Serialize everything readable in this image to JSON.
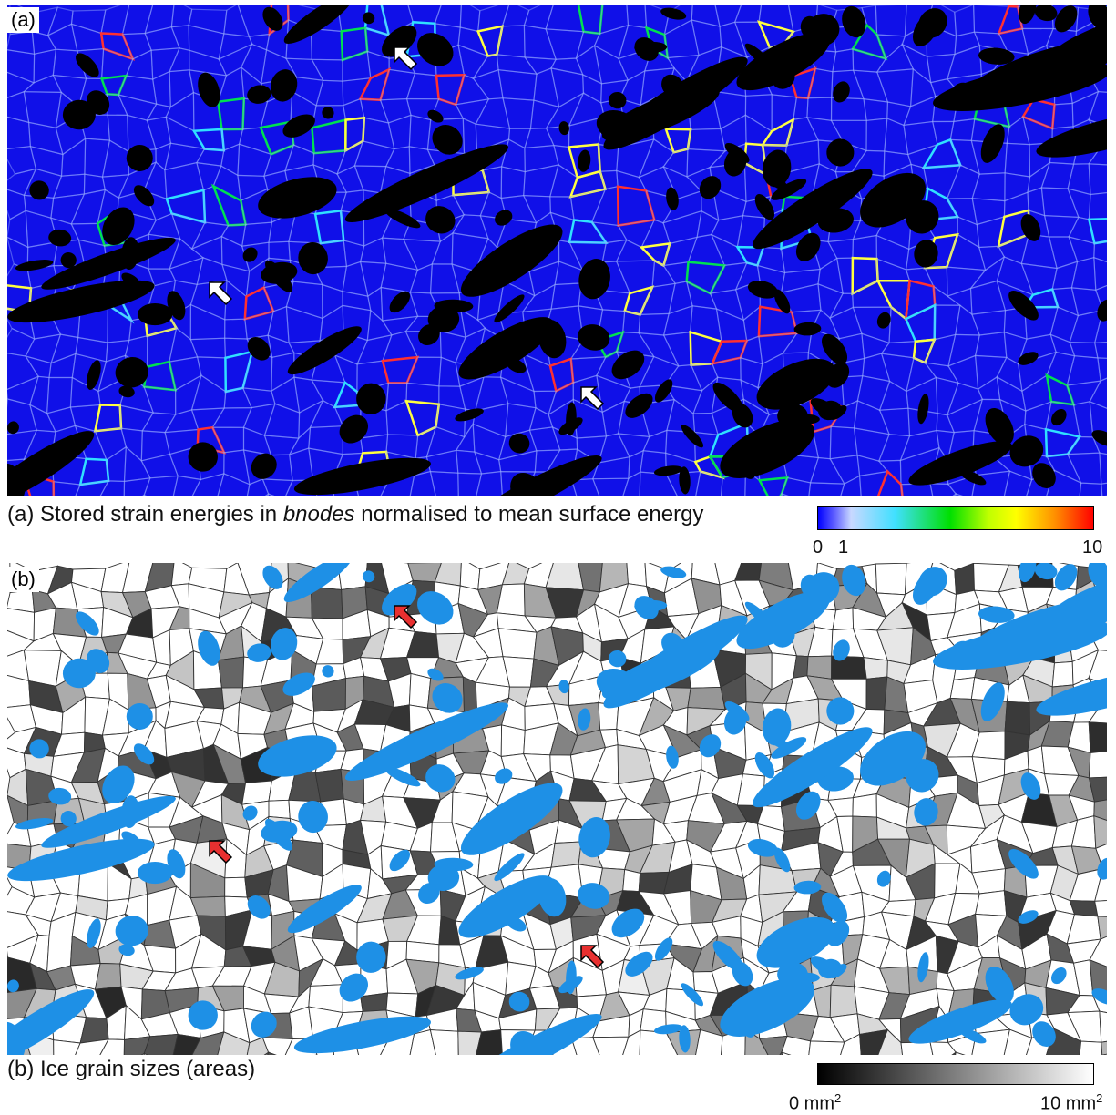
{
  "panels": [
    {
      "label": "(a)",
      "caption": {
        "parts": [
          "(a) Stored strain energies in ",
          "bnodes",
          " normalised to mean surface energy"
        ]
      },
      "colorbar": {
        "ticks": [
          "0",
          "1",
          "10"
        ]
      }
    },
    {
      "label": "(b)",
      "caption": {
        "parts": [
          "(b) Ice grain sizes (areas)"
        ]
      },
      "colorbar": {
        "ticks": [
          {
            "text": "0 mm",
            "sup": "2"
          },
          {
            "text": "10 mm",
            "sup": "2"
          }
        ]
      }
    }
  ]
}
